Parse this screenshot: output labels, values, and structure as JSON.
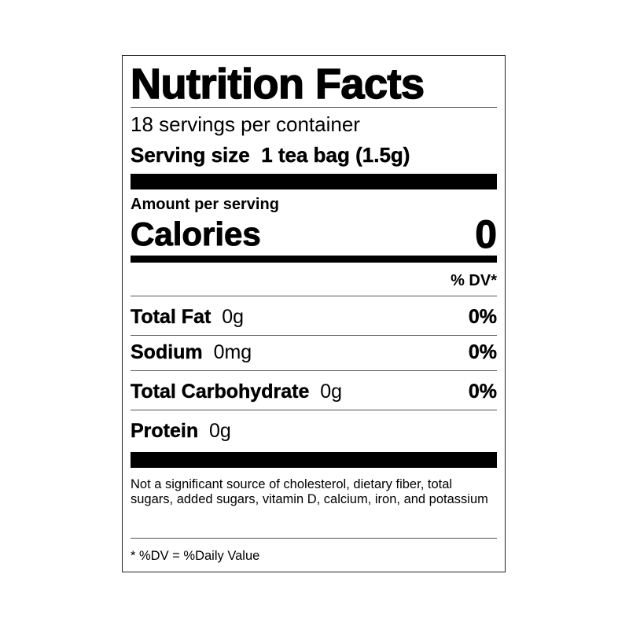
{
  "label": {
    "title": "Nutrition Facts",
    "servings_per_container": "18 servings per container",
    "serving_size_label": "Serving size",
    "serving_size_value": "1 tea bag (1.5g)",
    "amount_per_serving": "Amount per serving",
    "calories_label": "Calories",
    "calories_value": "0",
    "dv_header": "% DV*",
    "nutrients": [
      {
        "name": "Total Fat",
        "amount": "0g",
        "dv": "0%"
      },
      {
        "name": "Sodium",
        "amount": "0mg",
        "dv": "0%"
      },
      {
        "name": "Total Carbohydrate",
        "amount": "0g",
        "dv": "0%"
      },
      {
        "name": "Protein",
        "amount": "0g",
        "dv": ""
      }
    ],
    "footnote": "Not a significant source of cholesterol, dietary fiber, total sugars, added sugars, vitamin D, calcium, iron, and potassium",
    "dv_note": "* %DV = %Daily Value"
  }
}
